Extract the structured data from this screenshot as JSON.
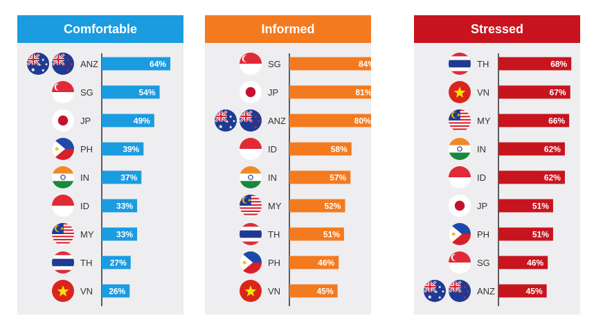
{
  "chart_data": [
    {
      "type": "bar",
      "orientation": "horizontal",
      "title": "Comfortable",
      "color": "#1b9be0",
      "header_color": "#1b9be0",
      "categories": [
        "ANZ",
        "SG",
        "JP",
        "PH",
        "IN",
        "ID",
        "MY",
        "TH",
        "VN"
      ],
      "values": [
        64,
        54,
        49,
        39,
        37,
        33,
        33,
        27,
        26
      ],
      "value_labels": [
        "64%",
        "54%",
        "49%",
        "39%",
        "37%",
        "33%",
        "33%",
        "27%",
        "26%"
      ],
      "unit": "%"
    },
    {
      "type": "bar",
      "orientation": "horizontal",
      "title": "Informed",
      "color": "#f47a1f",
      "header_color": "#f47a1f",
      "categories": [
        "SG",
        "JP",
        "ANZ",
        "ID",
        "IN",
        "MY",
        "TH",
        "PH",
        "VN"
      ],
      "values": [
        84,
        81,
        80,
        58,
        57,
        52,
        51,
        46,
        45
      ],
      "value_labels": [
        "84%",
        "81%",
        "80%",
        "58%",
        "57%",
        "52%",
        "51%",
        "46%",
        "45%"
      ],
      "unit": "%"
    },
    {
      "type": "bar",
      "orientation": "horizontal",
      "title": "Stressed",
      "color": "#c8141e",
      "header_color": "#c8141e",
      "categories": [
        "TH",
        "VN",
        "MY",
        "IN",
        "ID",
        "JP",
        "PH",
        "SG",
        "ANZ"
      ],
      "values": [
        68,
        67,
        66,
        62,
        62,
        51,
        51,
        46,
        45
      ],
      "value_labels": [
        "68%",
        "67%",
        "66%",
        "62%",
        "62%",
        "51%",
        "51%",
        "46%",
        "45%"
      ],
      "unit": "%"
    }
  ],
  "flags": {
    "ANZ": [
      "australia-flag-icon",
      "new-zealand-flag-icon"
    ],
    "SG": [
      "singapore-flag-icon"
    ],
    "JP": [
      "japan-flag-icon"
    ],
    "PH": [
      "philippines-flag-icon"
    ],
    "IN": [
      "india-flag-icon"
    ],
    "ID": [
      "indonesia-flag-icon"
    ],
    "MY": [
      "malaysia-flag-icon"
    ],
    "TH": [
      "thailand-flag-icon"
    ],
    "VN": [
      "vietnam-flag-icon"
    ]
  }
}
